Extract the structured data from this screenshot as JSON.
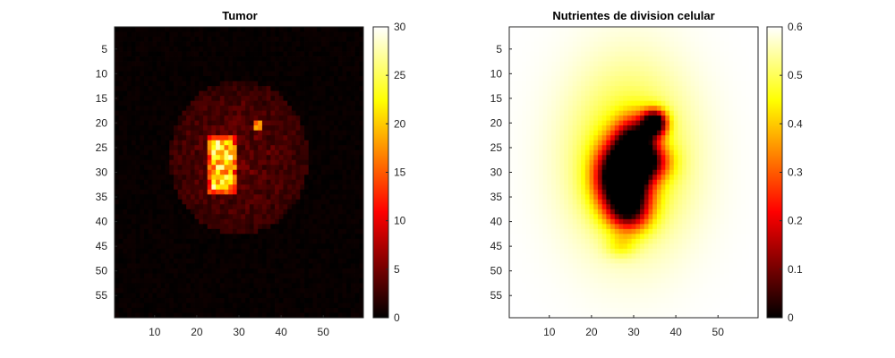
{
  "chart_data": [
    {
      "type": "heatmap",
      "title": "Tumor",
      "colormap": "hot",
      "grid": false,
      "legend": "colorbar-right",
      "xlim": [
        0.5,
        59.5
      ],
      "ylim": [
        0.5,
        59.5
      ],
      "y_reversed": true,
      "xticks": [
        10,
        20,
        30,
        40,
        50
      ],
      "yticks": [
        5,
        10,
        15,
        20,
        25,
        30,
        35,
        40,
        45,
        50,
        55
      ],
      "color_range": [
        0,
        30
      ],
      "colorbar_ticks": [
        0,
        5,
        10,
        15,
        20,
        25,
        30
      ],
      "features": [
        {
          "kind": "diffuse-cloud",
          "center": [
            30,
            27
          ],
          "radius": 16,
          "value": 3.5
        },
        {
          "kind": "core",
          "x_range": [
            23,
            29
          ],
          "y_range": [
            23,
            34
          ],
          "value": 22
        },
        {
          "kind": "hotspot",
          "center": [
            34.5,
            20.5
          ],
          "value": 16
        }
      ]
    },
    {
      "type": "heatmap",
      "title": "Nutrientes de division celular",
      "colormap": "hot",
      "grid": false,
      "legend": "colorbar-right",
      "xlim": [
        0.5,
        59.5
      ],
      "ylim": [
        0.5,
        59.5
      ],
      "y_reversed": true,
      "xticks": [
        10,
        20,
        30,
        40,
        50
      ],
      "yticks": [
        5,
        10,
        15,
        20,
        25,
        30,
        35,
        40,
        45,
        50,
        55
      ],
      "color_range": [
        0,
        0.6
      ],
      "colorbar_ticks": [
        0,
        0.1,
        0.2,
        0.3,
        0.4,
        0.5,
        0.6
      ],
      "background_value": 0.6,
      "features": [
        {
          "kind": "depleted-core",
          "center": [
            28,
            31
          ],
          "value": 0.0
        },
        {
          "kind": "depleted-spot",
          "center": [
            35,
            20
          ],
          "value": 0.0
        },
        {
          "kind": "halo",
          "center": [
            28,
            28
          ],
          "value": 0.45
        },
        {
          "kind": "spot",
          "center": [
            27,
            45
          ],
          "value": 0.5
        }
      ]
    }
  ]
}
